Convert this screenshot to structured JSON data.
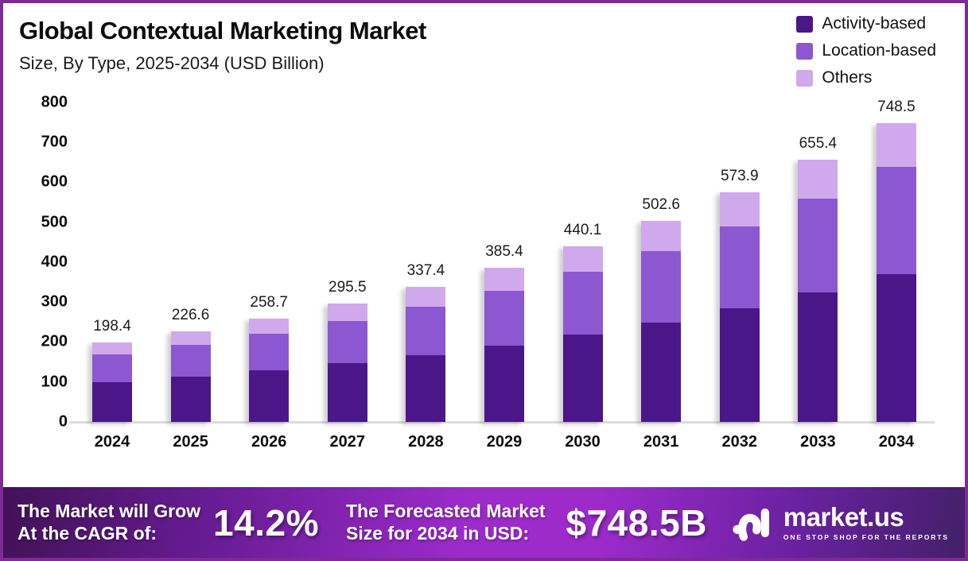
{
  "header": {
    "title": "Global Contextual Marketing Market",
    "subtitle": "Size, By Type, 2025-2034 (USD Billion)"
  },
  "colors": {
    "activity_based": "#4B1688",
    "location_based": "#8C57D1",
    "others": "#D0A9EC",
    "frame_border": "#7D2B94",
    "banner_gradient_mid": "#9C2BCA",
    "axis_line": "#DCDCDC"
  },
  "chart_data": {
    "type": "bar",
    "stacked": true,
    "title": "Global Contextual Marketing Market",
    "subtitle": "Size, By Type, 2025-2034 (USD Billion)",
    "xlabel": "",
    "ylabel": "USD Billion",
    "categories": [
      "2024",
      "2025",
      "2026",
      "2027",
      "2028",
      "2029",
      "2030",
      "2031",
      "2032",
      "2033",
      "2034"
    ],
    "totals": [
      198.4,
      226.6,
      258.7,
      295.5,
      337.4,
      385.4,
      440.1,
      502.6,
      573.9,
      655.4,
      748.5
    ],
    "series": [
      {
        "name": "Activity-based",
        "color": "#4B1688",
        "values": [
          98.2,
          112.2,
          128.1,
          146.3,
          167.0,
          190.8,
          217.8,
          248.8,
          284.1,
          324.4,
          370.5
        ]
      },
      {
        "name": "Location-based",
        "color": "#8C57D1",
        "values": [
          70.8,
          80.9,
          92.4,
          105.5,
          120.5,
          137.6,
          157.1,
          179.4,
          204.9,
          234.0,
          267.2
        ]
      },
      {
        "name": "Others",
        "color": "#D0A9EC",
        "values": [
          29.4,
          33.5,
          38.2,
          43.7,
          49.9,
          57.0,
          65.2,
          74.4,
          84.9,
          97.0,
          110.8
        ]
      }
    ],
    "ylim": [
      0,
      800
    ],
    "ytick_step": 100,
    "grid": false,
    "legend_position": "top-right"
  },
  "legend": {
    "items": [
      {
        "label": "Activity-based",
        "color": "#4B1688"
      },
      {
        "label": "Location-based",
        "color": "#8C57D1"
      },
      {
        "label": "Others",
        "color": "#D0A9EC"
      }
    ]
  },
  "banner": {
    "cagr_line1": "The Market will Grow",
    "cagr_line2": "At the CAGR of:",
    "cagr_value": "14.2%",
    "forecast_line1": "The Forecasted Market",
    "forecast_line2": "Size for 2034 in USD:",
    "forecast_value": "$748.5B",
    "logo_name": "market.us",
    "logo_tagline": "ONE STOP SHOP FOR THE REPORTS"
  }
}
